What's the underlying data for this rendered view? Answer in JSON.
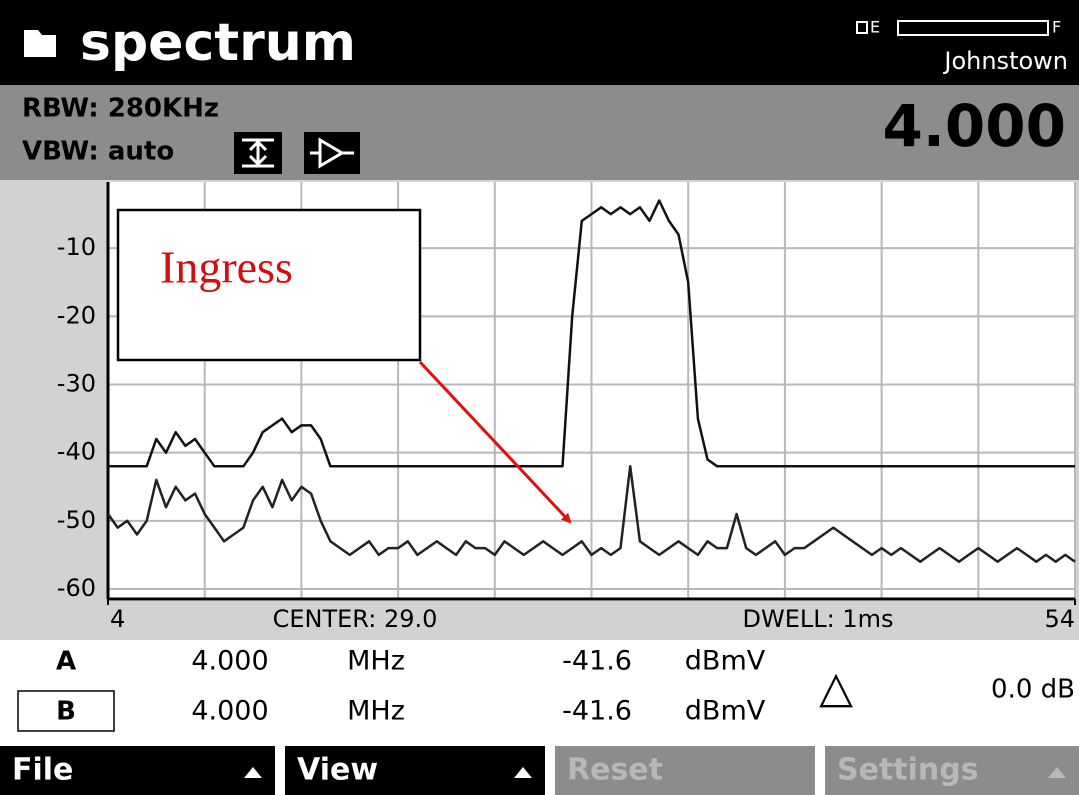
{
  "header": {
    "title": "spectrum",
    "battery": {
      "empty": "E",
      "full": "F"
    },
    "location": "Johnstown"
  },
  "settings": {
    "rbw": "RBW: 280KHz",
    "vbw": "VBW: auto",
    "frequency": "4.000"
  },
  "chart_data": {
    "type": "line",
    "x": [
      4,
      4.5,
      5,
      5.5,
      6,
      6.5,
      7,
      7.5,
      8,
      8.5,
      9,
      9.5,
      10,
      10.5,
      11,
      11.5,
      12,
      12.5,
      13,
      13.5,
      14,
      14.5,
      15,
      15.5,
      16,
      16.5,
      17,
      17.5,
      18,
      18.5,
      19,
      19.5,
      20,
      20.5,
      21,
      21.5,
      22,
      22.5,
      23,
      23.5,
      24,
      24.5,
      25,
      25.5,
      26,
      26.5,
      27,
      27.5,
      28,
      28.5,
      29,
      29.5,
      30,
      30.5,
      31,
      31.5,
      32,
      32.5,
      33,
      33.5,
      34,
      34.5,
      35,
      35.5,
      36,
      36.5,
      37,
      37.5,
      38,
      38.5,
      39,
      39.5,
      40,
      40.5,
      41,
      41.5,
      42,
      42.5,
      43,
      43.5,
      44,
      44.5,
      45,
      45.5,
      46,
      46.5,
      47,
      47.5,
      48,
      48.5,
      49,
      49.5,
      50,
      50.5,
      51,
      51.5,
      52,
      52.5,
      53,
      53.5,
      54
    ],
    "series": [
      {
        "color": "#111111",
        "values": [
          -42,
          -42,
          -42,
          -42,
          -42,
          -38,
          -40,
          -37,
          -39,
          -38,
          -40,
          -42,
          -42,
          -42,
          -42,
          -40,
          -37,
          -36,
          -35,
          -37,
          -36,
          -36,
          -38,
          -42,
          -42,
          -42,
          -42,
          -42,
          -42,
          -42,
          -42,
          -42,
          -42,
          -42,
          -42,
          -42,
          -42,
          -42,
          -42,
          -42,
          -42,
          -42,
          -42,
          -42,
          -42,
          -42,
          -42,
          -42,
          -20,
          -6,
          -5,
          -4,
          -5,
          -4,
          -5,
          -4,
          -6,
          -3,
          -6,
          -8,
          -15,
          -35,
          -41,
          -42,
          -42,
          -42,
          -42,
          -42,
          -42,
          -42,
          -42,
          -42,
          -42,
          -42,
          -42,
          -42,
          -42,
          -42,
          -42,
          -42,
          -42,
          -42,
          -42,
          -42,
          -42,
          -42,
          -42,
          -42,
          -42,
          -42,
          -42,
          -42,
          -42,
          -42,
          -42,
          -42,
          -42,
          -42,
          -42,
          -42,
          -42
        ]
      },
      {
        "color": "#222222",
        "values": [
          -49,
          -51,
          -50,
          -52,
          -50,
          -44,
          -48,
          -45,
          -47,
          -46,
          -49,
          -51,
          -53,
          -52,
          -51,
          -47,
          -45,
          -48,
          -44,
          -47,
          -45,
          -46,
          -50,
          -53,
          -54,
          -55,
          -54,
          -53,
          -55,
          -54,
          -54,
          -53,
          -55,
          -54,
          -53,
          -54,
          -55,
          -53,
          -54,
          -54,
          -55,
          -53,
          -54,
          -55,
          -54,
          -53,
          -54,
          -55,
          -54,
          -53,
          -55,
          -54,
          -55,
          -54,
          -42,
          -53,
          -54,
          -55,
          -54,
          -53,
          -54,
          -55,
          -53,
          -54,
          -54,
          -49,
          -54,
          -55,
          -54,
          -53,
          -55,
          -54,
          -54,
          -53,
          -52,
          -51,
          -52,
          -53,
          -54,
          -55,
          -54,
          -55,
          -54,
          -55,
          -56,
          -55,
          -54,
          -55,
          -56,
          -55,
          -54,
          -55,
          -56,
          -55,
          -54,
          -55,
          -56,
          -55,
          -56,
          -55,
          -56
        ]
      }
    ],
    "xlim": [
      4,
      54
    ],
    "xticks": [
      4,
      54
    ],
    "ylim": [
      -60,
      0
    ],
    "yticks": [
      -60,
      -50,
      -40,
      -30,
      -20,
      -10
    ],
    "grid": true,
    "annotation": "Ingress",
    "footer": {
      "center": "CENTER: 29.0",
      "dwell": "DWELL: 1ms"
    }
  },
  "markers": {
    "rows": [
      {
        "label": "A",
        "frequency": "4.000",
        "frequency_unit": "MHz",
        "level": "-41.6",
        "level_unit": "dBmV"
      },
      {
        "label": "B",
        "frequency": "4.000",
        "frequency_unit": "MHz",
        "level": "-41.6",
        "level_unit": "dBmV"
      }
    ],
    "delta_symbol": "△",
    "delta": "0.0 dB"
  },
  "softkeys": [
    {
      "label": "File",
      "enabled": true
    },
    {
      "label": "View",
      "enabled": true
    },
    {
      "label": "Reset",
      "enabled": false
    },
    {
      "label": "Settings",
      "enabled": false
    }
  ]
}
